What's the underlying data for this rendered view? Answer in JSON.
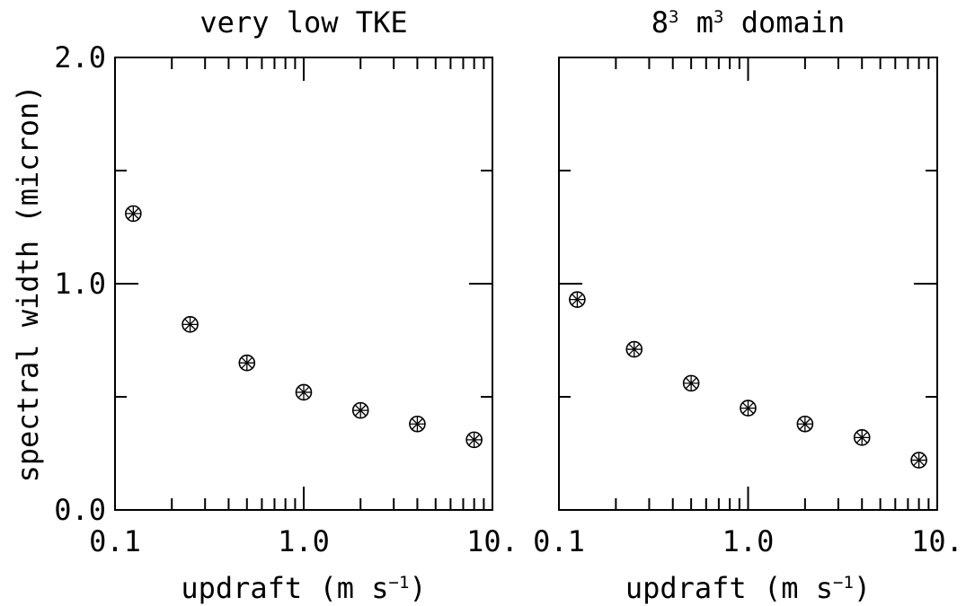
{
  "chart_data": [
    {
      "type": "scatter",
      "title": "very low TKE",
      "xlabel": "updraft (m s⁻¹)",
      "ylabel": "spectral width (micron)",
      "x_scale": "log",
      "xlim": [
        0.1,
        10
      ],
      "ylim": [
        0,
        2
      ],
      "x_tick_labels": [
        "0.1",
        "1.0",
        "10."
      ],
      "y_tick_labels": [
        "0.0",
        "1.0",
        "2.0"
      ],
      "marker": "circled-asterisk",
      "grid": false,
      "series": [
        {
          "x": [
            0.125,
            0.25,
            0.5,
            1.0,
            2.0,
            4.0,
            8.0
          ],
          "y": [
            1.31,
            0.82,
            0.65,
            0.52,
            0.44,
            0.38,
            0.31
          ]
        }
      ]
    },
    {
      "type": "scatter",
      "title": "8³ m³ domain",
      "xlabel": "updraft (m s⁻¹)",
      "ylabel": "",
      "x_scale": "log",
      "xlim": [
        0.1,
        10
      ],
      "ylim": [
        0,
        2
      ],
      "x_tick_labels": [
        "0.1",
        "1.0",
        "10."
      ],
      "y_tick_labels": [],
      "marker": "circled-asterisk",
      "grid": false,
      "series": [
        {
          "x": [
            0.125,
            0.25,
            0.5,
            1.0,
            2.0,
            4.0,
            8.0
          ],
          "y": [
            0.93,
            0.71,
            0.56,
            0.45,
            0.38,
            0.32,
            0.22
          ]
        }
      ]
    }
  ]
}
